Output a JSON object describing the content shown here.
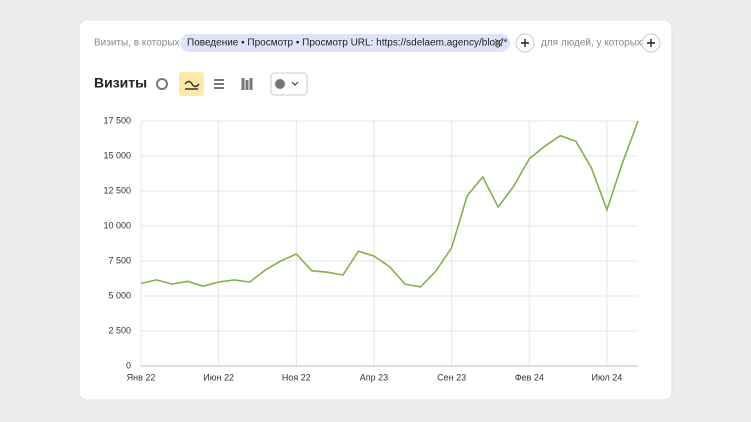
{
  "filter": {
    "prefix": "Визиты, в которых",
    "chip": "Поведение • Просмотр • Просмотр URL: https://sdelaem.agency/blog/*",
    "suffix": "для людей, у которых"
  },
  "chart_data": {
    "type": "line",
    "title": "Визиты",
    "categories": [
      "Янв 22",
      null,
      null,
      null,
      null,
      "Июн 22",
      null,
      null,
      null,
      null,
      "Ноя 22",
      null,
      null,
      null,
      null,
      "Апр 23",
      null,
      null,
      null,
      null,
      "Сен 23",
      null,
      null,
      null,
      null,
      "Фев 24",
      null,
      null,
      null,
      null,
      "Июл 24",
      null,
      null
    ],
    "series": [
      {
        "name": "Визиты",
        "color": "#86b04e",
        "values": [
          5900,
          6150,
          5850,
          6050,
          5700,
          6000,
          6150,
          6000,
          6850,
          7500,
          8000,
          6800,
          6700,
          6500,
          8200,
          7850,
          7100,
          5850,
          5650,
          6800,
          8450,
          12150,
          13500,
          11350,
          12850,
          14800,
          15700,
          16450,
          16050,
          14150,
          11150,
          14500,
          17500
        ]
      }
    ],
    "ylim": [
      0,
      17500
    ],
    "yticks": [
      0,
      {
        "value": 2500,
        "label": "2 500"
      },
      {
        "value": 5000,
        "label": "5 000"
      },
      {
        "value": 7500,
        "label": "7 500"
      },
      {
        "value": 10000,
        "label": "10 000"
      },
      {
        "value": 12500,
        "label": "12 500"
      },
      {
        "value": 15000,
        "label": "15 000"
      },
      {
        "value": 17500,
        "label": "17 500"
      }
    ],
    "grid": true
  }
}
